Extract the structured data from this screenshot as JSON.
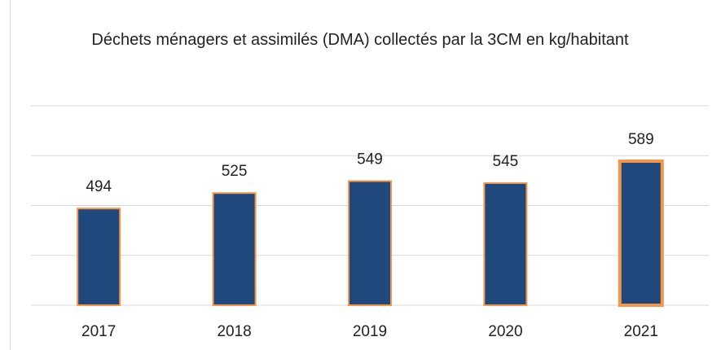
{
  "chart_data": {
    "type": "bar",
    "title": "Déchets ménagers et assimilés (DMA) collectés par la 3CM en kg/habitant",
    "categories": [
      "2017",
      "2018",
      "2019",
      "2020",
      "2021"
    ],
    "values": [
      494,
      525,
      549,
      545,
      589
    ],
    "color": "#1f497d",
    "edge_color": "#f79646",
    "ylim": [
      300,
      700
    ],
    "yticks": [
      300,
      400,
      500,
      600,
      700
    ],
    "grid": true
  }
}
